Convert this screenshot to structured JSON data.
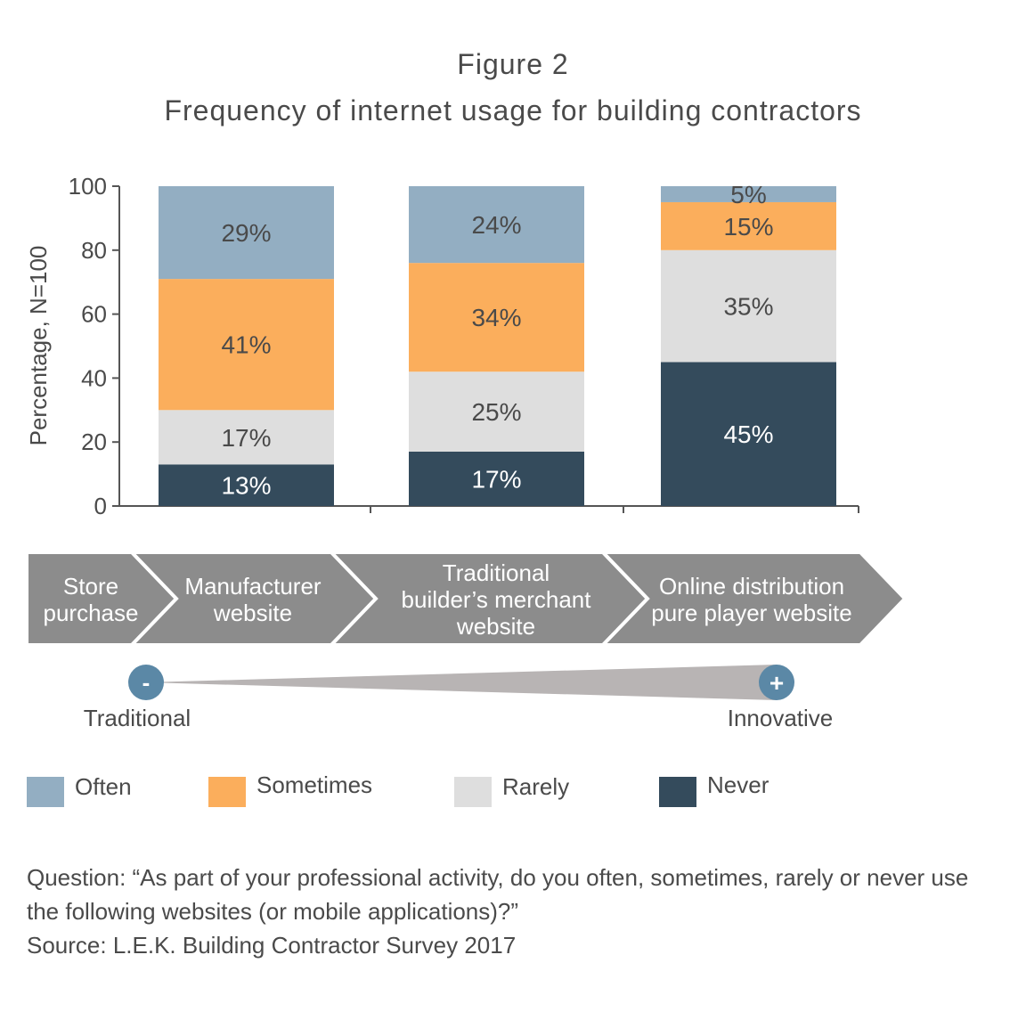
{
  "header": {
    "title": "Figure 2",
    "subtitle": "Frequency of internet usage for building contractors"
  },
  "chart_data": {
    "type": "bar",
    "stacked": true,
    "ylabel": "Percentage, N=100",
    "ylim": [
      0,
      100
    ],
    "yticks": [
      "0",
      "20",
      "40",
      "60",
      "80",
      "100"
    ],
    "grid": false,
    "categories": [
      "Manufacturer website",
      "Traditional builder’s merchant website",
      "Online distribution pure player website"
    ],
    "series": [
      {
        "name": "Never",
        "color": "#344b5c",
        "values": [
          13,
          17,
          45
        ],
        "labels": [
          "13%",
          "17%",
          "45%"
        ],
        "label_color": "#ffffff"
      },
      {
        "name": "Rarely",
        "color": "#dedede",
        "values": [
          17,
          25,
          35
        ],
        "labels": [
          "17%",
          "25%",
          "35%"
        ],
        "label_color": "#4a4a4a"
      },
      {
        "name": "Sometimes",
        "color": "#fbae5c",
        "values": [
          41,
          34,
          15
        ],
        "labels": [
          "41%",
          "34%",
          "15%"
        ],
        "label_color": "#4a4a4a"
      },
      {
        "name": "Often",
        "color": "#93aec2",
        "values": [
          29,
          24,
          5
        ],
        "labels": [
          "29%",
          "24%",
          "5%"
        ],
        "label_color": "#4a4a4a"
      }
    ],
    "legend_position": "bottom"
  },
  "chevrons": {
    "color": "#8c8c8c",
    "items": [
      {
        "lines": [
          "Store",
          "purchase"
        ]
      },
      {
        "lines": [
          "Manufacturer",
          "website"
        ]
      },
      {
        "lines": [
          "Traditional",
          "builder’s merchant",
          "website"
        ]
      },
      {
        "lines": [
          "Online distribution",
          "pure player website"
        ]
      }
    ]
  },
  "scale": {
    "minus_symbol": "-",
    "plus_symbol": "+",
    "left_label": "Traditional",
    "right_label": "Innovative",
    "circle_color": "#5b88a6",
    "wedge_color": "#b8b4b4"
  },
  "legend": {
    "items": [
      {
        "label": "Often",
        "color": "#93aec2"
      },
      {
        "label": "Sometimes",
        "color": "#fbae5c"
      },
      {
        "label": "Rarely",
        "color": "#dedede"
      },
      {
        "label": "Never",
        "color": "#344b5c"
      }
    ]
  },
  "footnote": {
    "question_line1": "Question: “As part of your professional activity, do you often, sometimes, rarely or never use",
    "question_line2": "the following websites (or mobile applications)?”",
    "source": "Source: L.E.K. Building Contractor Survey 2017"
  }
}
